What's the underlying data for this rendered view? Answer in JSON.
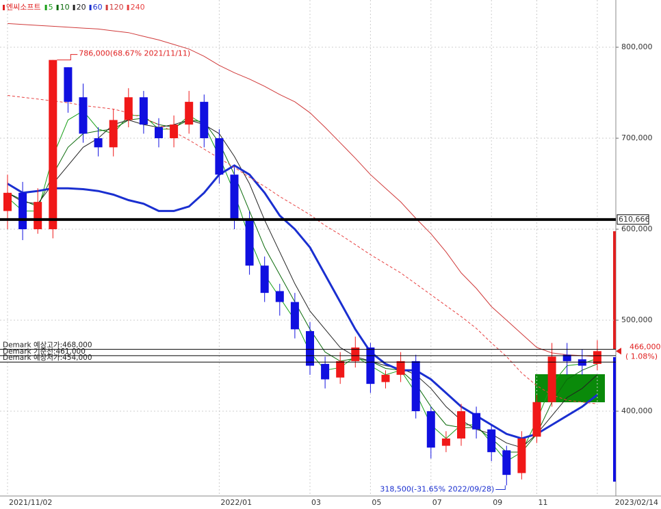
{
  "chart_data": {
    "type": "candlestick",
    "title": "엔씨소프트",
    "title_color": "#e02020",
    "categories": [
      "2021/11/02",
      null,
      null,
      null,
      null,
      null,
      null,
      null,
      null,
      null,
      null,
      null,
      null,
      null,
      "2022/01",
      null,
      null,
      null,
      null,
      null,
      "03",
      null,
      null,
      null,
      "05",
      null,
      null,
      null,
      "07",
      null,
      null,
      null,
      "09",
      null,
      null,
      "11",
      null,
      null,
      null,
      "2023/02/14"
    ],
    "open": [
      620000,
      640000,
      600000,
      600000,
      778000,
      745000,
      700000,
      690000,
      720000,
      745000,
      712000,
      700000,
      715000,
      740000,
      700000,
      660000,
      612000,
      560000,
      532000,
      520000,
      488000,
      452000,
      437000,
      455000,
      470000,
      432000,
      440000,
      455000,
      400000,
      362000,
      370000,
      398000,
      380000,
      357000,
      332000,
      372000,
      410000,
      462000,
      457000,
      452000
    ],
    "high": [
      660000,
      652000,
      645000,
      786000,
      778000,
      760000,
      712000,
      732000,
      755000,
      752000,
      722000,
      725000,
      752000,
      748000,
      710000,
      668000,
      620000,
      570000,
      540000,
      530000,
      498000,
      460000,
      465000,
      482000,
      475000,
      445000,
      465000,
      462000,
      405000,
      378000,
      408000,
      405000,
      385000,
      362000,
      378000,
      418000,
      475000,
      475000,
      468000,
      478000
    ],
    "low": [
      600000,
      588000,
      595000,
      590000,
      728000,
      695000,
      680000,
      680000,
      712000,
      705000,
      690000,
      690000,
      705000,
      690000,
      650000,
      600000,
      550000,
      520000,
      505000,
      480000,
      440000,
      425000,
      430000,
      448000,
      420000,
      425000,
      432000,
      392000,
      348000,
      355000,
      362000,
      370000,
      345000,
      318500,
      325000,
      365000,
      405000,
      440000,
      440000,
      445000
    ],
    "close": [
      640000,
      600000,
      630000,
      786000,
      740000,
      705000,
      690000,
      720000,
      745000,
      715000,
      700000,
      715000,
      740000,
      700000,
      660000,
      610000,
      560000,
      530000,
      520000,
      490000,
      450000,
      435000,
      455000,
      470000,
      430000,
      440000,
      455000,
      400000,
      360000,
      370000,
      400000,
      380000,
      355000,
      330000,
      370000,
      410000,
      460000,
      455000,
      450000,
      466000
    ],
    "up_color": "#f01818",
    "down_color": "#1010e0",
    "series": [
      {
        "name": "5",
        "color": "#18a018",
        "width": 1,
        "dashed": false,
        "values": [
          635000,
          620000,
          620000,
          680000,
          720000,
          730000,
          710000,
          705000,
          725000,
          725000,
          710000,
          710000,
          725000,
          715000,
          680000,
          640000,
          590000,
          550000,
          525000,
          500000,
          465000,
          445000,
          448000,
          460000,
          450000,
          440000,
          445000,
          420000,
          385000,
          370000,
          385000,
          385000,
          365000,
          345000,
          355000,
          390000,
          430000,
          450000,
          452000,
          458000
        ]
      },
      {
        "name": "10",
        "color": "#0a6a0a",
        "width": 1,
        "dashed": false,
        "values": [
          640000,
          632000,
          625000,
          660000,
          690000,
          705000,
          708000,
          710000,
          720000,
          722000,
          715000,
          712000,
          720000,
          718000,
          695000,
          660000,
          620000,
          580000,
          550000,
          520000,
          490000,
          465000,
          455000,
          458000,
          455000,
          447000,
          445000,
          430000,
          405000,
          385000,
          382000,
          382000,
          370000,
          355000,
          355000,
          375000,
          410000,
          435000,
          445000,
          452000
        ]
      },
      {
        "name": "20",
        "color": "#222222",
        "width": 1,
        "dashed": false,
        "values": [
          640000,
          630000,
          628000,
          650000,
          670000,
          690000,
          700000,
          715000,
          720000,
          715000,
          712000,
          715000,
          720000,
          715000,
          705000,
          680000,
          650000,
          610000,
          575000,
          540000,
          510000,
          490000,
          470000,
          460000,
          455000,
          450000,
          447000,
          440000,
          425000,
          405000,
          390000,
          380000,
          375000,
          365000,
          360000,
          375000,
          395000,
          415000,
          425000,
          440000
        ]
      },
      {
        "name": "60",
        "color": "#1a2fd0",
        "width": 3,
        "dashed": false,
        "values": [
          650000,
          640000,
          642000,
          645000,
          645000,
          644000,
          642000,
          638000,
          632000,
          628000,
          620000,
          620000,
          625000,
          640000,
          660000,
          670000,
          660000,
          640000,
          615000,
          600000,
          580000,
          550000,
          520000,
          490000,
          465000,
          452000,
          445000,
          445000,
          435000,
          420000,
          405000,
          395000,
          385000,
          375000,
          370000,
          375000,
          385000,
          395000,
          405000,
          418000
        ]
      },
      {
        "name": "120",
        "color": "#d03a3a",
        "width": 1,
        "dashed": false,
        "values": [
          826000,
          825000,
          824000,
          823000,
          822000,
          821000,
          820000,
          818000,
          816000,
          812000,
          808000,
          803000,
          798000,
          790000,
          780000,
          772000,
          765000,
          757000,
          748000,
          740000,
          728000,
          712000,
          695000,
          678000,
          660000,
          645000,
          630000,
          612000,
          595000,
          575000,
          552000,
          535000,
          515000,
          500000,
          485000,
          470000,
          464000,
          462000,
          461000,
          460000
        ]
      },
      {
        "name": "240",
        "color": "#e84040",
        "width": 1,
        "dashed": true,
        "values": [
          747000,
          745000,
          743000,
          741000,
          739000,
          736000,
          734000,
          732000,
          728000,
          722000,
          715000,
          707000,
          698000,
          688000,
          678000,
          668000,
          657000,
          647000,
          636000,
          626000,
          616000,
          604000,
          594000,
          583000,
          572000,
          562000,
          552000,
          540000,
          528000,
          516000,
          504000,
          491000,
          475000,
          460000,
          442000,
          428000,
          418000,
          412000,
          410000,
          408000
        ]
      }
    ],
    "ylim": [
      306800,
      851900
    ],
    "yticks": [
      {
        "value": 400000,
        "label": "400,000"
      },
      {
        "value": 500000,
        "label": "500,000"
      },
      {
        "value": 600000,
        "label": "600,000"
      },
      {
        "value": 700000,
        "label": "700,000"
      },
      {
        "value": 800000,
        "label": "800,000"
      }
    ],
    "grid": true,
    "hlines": [
      {
        "value": 610666,
        "label": "610,666",
        "color": "#000000",
        "width": 4
      },
      {
        "value": 468000,
        "label": "Demark 예상고가:468,000",
        "color": "#000000",
        "width": 1
      },
      {
        "value": 461000,
        "label": "Demark 기준선:461,000",
        "color": "#000000",
        "width": 1
      },
      {
        "value": 454000,
        "label": "Demark 예상저가:454,000",
        "color": "#000000",
        "width": 1
      }
    ],
    "annotations": [
      {
        "value": 786000,
        "text": "786,000(68.67% 2021/11/11)",
        "color": "#e02020"
      },
      {
        "value": 318500,
        "text": "318,500(-31.65% 2022/09/28)",
        "color": "#1a2fd0"
      }
    ],
    "last_price": {
      "value": 466000,
      "label": "466,000",
      "change": "( 1.08%)",
      "color": "#e02020"
    }
  }
}
